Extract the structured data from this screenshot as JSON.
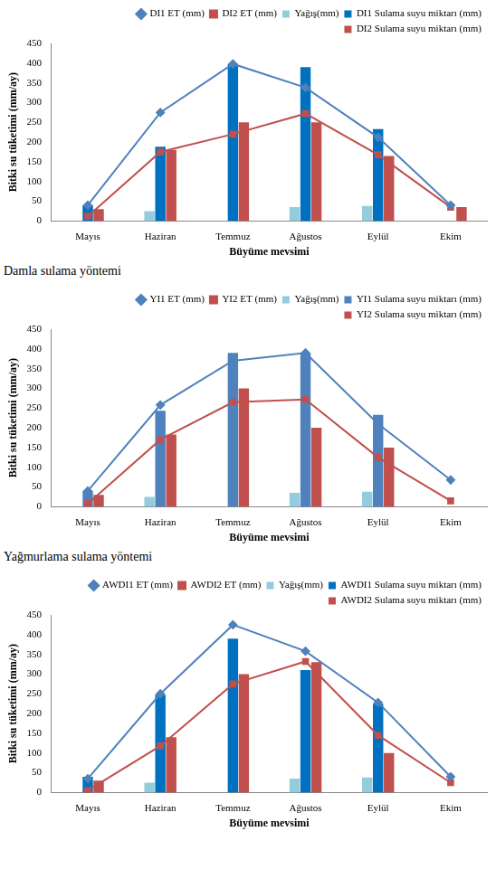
{
  "chart_data": [
    {
      "type": "bar",
      "caption": "Damla sulama yöntemi",
      "x_label": "Büyüme mevsimi",
      "y_label": "Bitki su tüketimi (mm/ay)",
      "categories": [
        "Mayıs",
        "Haziran",
        "Temmuz",
        "Ağustos",
        "Eylül",
        "Ekim"
      ],
      "series": [
        {
          "name": "Yağış(mm)",
          "type": "bar",
          "color": "#93cddd",
          "values": [
            0,
            25,
            0,
            35,
            38,
            0
          ]
        },
        {
          "name": "DI1 Sulama suyu miktarı (mm)",
          "type": "bar",
          "color": "#0070c0",
          "values": [
            40,
            188,
            398,
            390,
            233,
            0
          ]
        },
        {
          "name": "DI2 Sulama suyu miktarı (mm)",
          "type": "bar",
          "color": "#c0504d",
          "values": [
            30,
            180,
            250,
            250,
            165,
            35
          ]
        },
        {
          "name": "DI1 ET (mm)",
          "type": "line",
          "color": "#4f81bd",
          "marker": "diamond",
          "values": [
            40,
            275,
            398,
            338,
            212,
            40
          ]
        },
        {
          "name": "DI2 ET (mm)",
          "type": "line",
          "color": "#c0504d",
          "marker": "square",
          "values": [
            12,
            175,
            220,
            272,
            168,
            35
          ]
        }
      ],
      "ylim": [
        0,
        450
      ],
      "yticks": [
        0,
        50,
        100,
        150,
        200,
        250,
        300,
        350,
        400,
        450
      ],
      "grid": false,
      "legend": "top-right"
    },
    {
      "type": "bar",
      "caption": "Yağmurlama sulama yöntemi",
      "x_label": "Büyüme mevsimi",
      "y_label": "Bitki su tüketimi (mm/ay)",
      "categories": [
        "Mayıs",
        "Haziran",
        "Temmuz",
        "Ağustos",
        "Eylül",
        "Ekim"
      ],
      "series": [
        {
          "name": "Yağış(mm)",
          "type": "bar",
          "color": "#93cddd",
          "values": [
            0,
            25,
            0,
            35,
            38,
            0
          ]
        },
        {
          "name": "YI1 Sulama suyu miktarı (mm)",
          "type": "bar",
          "color": "#4f81bd",
          "values": [
            40,
            243,
            390,
            390,
            233,
            0
          ]
        },
        {
          "name": "YI2 Sulama suyu miktarı (mm)",
          "type": "bar",
          "color": "#c0504d",
          "values": [
            30,
            183,
            300,
            200,
            150,
            0
          ]
        },
        {
          "name": "YI1 ET (mm)",
          "type": "line",
          "color": "#4f81bd",
          "marker": "diamond",
          "values": [
            40,
            258,
            370,
            390,
            210,
            68
          ]
        },
        {
          "name": "YI2 ET (mm)",
          "type": "line",
          "color": "#c0504d",
          "marker": "square",
          "values": [
            8,
            170,
            265,
            272,
            125,
            15
          ]
        }
      ],
      "ylim": [
        0,
        450
      ],
      "yticks": [
        0,
        50,
        100,
        150,
        200,
        250,
        300,
        350,
        400,
        450
      ],
      "grid": false,
      "legend": "top-right"
    },
    {
      "type": "bar",
      "x_label": "Büyüme mevsimi",
      "y_label": "Bitki su tüketimi (mm/ay)",
      "categories": [
        "Mayıs",
        "Haziran",
        "Temmuz",
        "Ağustos",
        "Eylül",
        "Ekim"
      ],
      "series": [
        {
          "name": "Yağış(mm)",
          "type": "bar",
          "color": "#93cddd",
          "values": [
            0,
            25,
            0,
            35,
            38,
            0
          ]
        },
        {
          "name": "AWDI1 Sulama suyu miktarı (mm)",
          "type": "bar",
          "color": "#0070c0",
          "values": [
            40,
            248,
            390,
            310,
            225,
            0
          ]
        },
        {
          "name": "AWDI2 Sulama suyu miktarı (mm)",
          "type": "bar",
          "color": "#c0504d",
          "values": [
            30,
            140,
            300,
            330,
            100,
            0
          ]
        },
        {
          "name": "AWDI1 ET (mm)",
          "type": "line",
          "color": "#4f81bd",
          "marker": "diamond",
          "values": [
            35,
            250,
            425,
            358,
            228,
            40
          ]
        },
        {
          "name": "AWDI2 ET (mm)",
          "type": "line",
          "color": "#c0504d",
          "marker": "square",
          "values": [
            5,
            118,
            275,
            332,
            145,
            25
          ]
        }
      ],
      "ylim": [
        0,
        450
      ],
      "yticks": [
        0,
        50,
        100,
        150,
        200,
        250,
        300,
        350,
        400,
        450
      ],
      "grid": false,
      "legend": "top-right"
    }
  ]
}
